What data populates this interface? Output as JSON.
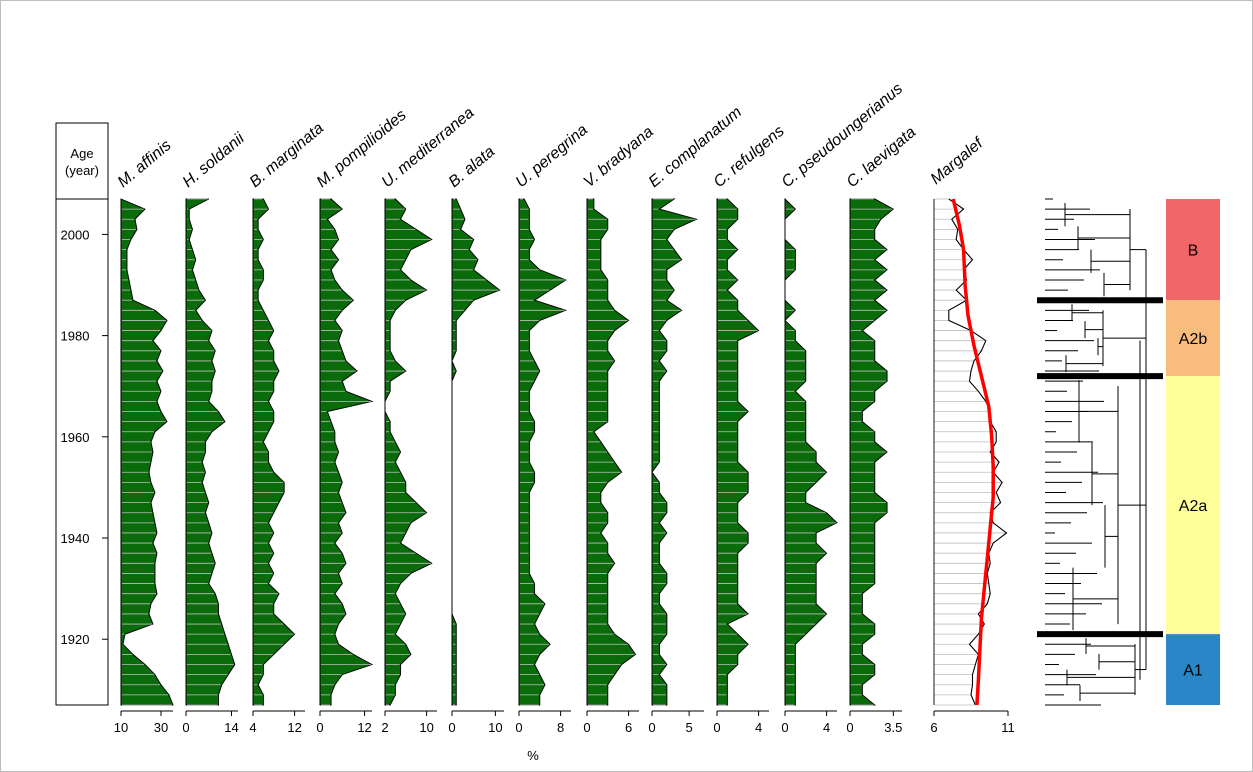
{
  "chart_data": {
    "type": "area",
    "y_axis": {
      "label": "Age\n(year)",
      "label_lines": [
        "Age",
        "(year)"
      ],
      "ticks": [
        2000,
        1980,
        1960,
        1940,
        1920
      ],
      "range": [
        1907,
        2007
      ]
    },
    "x_unit_label": "%",
    "samples_age": [
      2007,
      2005,
      2003,
      2001,
      1999,
      1997,
      1995,
      1993,
      1991,
      1989,
      1987,
      1985,
      1983,
      1981,
      1979,
      1977,
      1975,
      1973,
      1971,
      1969,
      1967,
      1965,
      1963,
      1961,
      1959,
      1957,
      1955,
      1953,
      1951,
      1949,
      1947,
      1945,
      1943,
      1941,
      1939,
      1937,
      1935,
      1933,
      1931,
      1929,
      1927,
      1925,
      1923,
      1921,
      1919,
      1917,
      1915,
      1913,
      1911,
      1909,
      1907
    ],
    "series": [
      {
        "name": "M. affinis",
        "tick_labels": [
          "10",
          "30"
        ],
        "xlim": [
          10,
          36
        ],
        "values": [
          10,
          22,
          17,
          18,
          15,
          13,
          13,
          13,
          14,
          15,
          16,
          27,
          33,
          30,
          26,
          30,
          28,
          31,
          28,
          30,
          28,
          30,
          33,
          27,
          25,
          26,
          25,
          24,
          25,
          27,
          25,
          26,
          27,
          28,
          26,
          28,
          27,
          27,
          27,
          28,
          25,
          24,
          26,
          12,
          11,
          16,
          22,
          27,
          30,
          34,
          36
        ]
      },
      {
        "name": "H. soldanii",
        "tick_labels": [
          "0",
          "14"
        ],
        "xlim": [
          0,
          16
        ],
        "values": [
          7,
          1,
          1,
          2,
          1,
          2,
          3,
          2,
          3,
          4,
          6,
          3,
          5,
          8,
          7,
          9,
          8,
          9,
          8,
          8,
          7,
          10,
          12,
          8,
          6,
          6,
          5,
          6,
          5,
          6,
          7,
          6,
          7,
          8,
          7,
          8,
          9,
          8,
          7,
          9,
          10,
          10,
          11,
          12,
          13,
          14,
          15,
          13,
          11,
          10,
          10
        ]
      },
      {
        "name": "B. marginata",
        "tick_labels": [
          "4",
          "12"
        ],
        "xlim": [
          4,
          14
        ],
        "values": [
          6,
          7,
          5,
          5,
          6,
          5,
          5,
          6,
          6,
          5,
          5,
          6,
          7,
          8,
          7,
          8,
          8,
          9,
          8,
          8,
          7,
          8,
          8,
          7,
          6,
          7,
          7,
          8,
          10,
          10,
          9,
          8,
          7,
          8,
          7,
          8,
          7,
          8,
          7,
          9,
          8,
          8,
          10,
          12,
          10,
          8,
          6,
          6,
          5,
          6,
          6
        ]
      },
      {
        "name": "M. pompilioides",
        "tick_labels": [
          "0",
          "12"
        ],
        "xlim": [
          0,
          14
        ],
        "values": [
          3,
          6,
          2,
          4,
          5,
          3,
          5,
          3,
          4,
          6,
          9,
          6,
          4,
          6,
          5,
          6,
          7,
          10,
          6,
          7,
          14,
          2,
          3,
          4,
          4,
          5,
          4,
          5,
          6,
          5,
          6,
          7,
          5,
          6,
          4,
          6,
          7,
          5,
          6,
          4,
          6,
          7,
          5,
          4,
          5,
          9,
          14,
          6,
          4,
          3,
          3
        ]
      },
      {
        "name": "U. mediterranea",
        "tick_labels": [
          "2",
          "10"
        ],
        "xlim": [
          2,
          12
        ],
        "values": [
          4,
          6,
          5,
          8,
          11,
          7,
          6,
          5,
          7,
          10,
          6,
          4,
          3,
          3,
          3,
          3,
          4,
          6,
          3,
          3,
          2,
          2,
          3,
          3,
          4,
          5,
          4,
          5,
          6,
          6,
          8,
          10,
          7,
          6,
          5,
          8,
          11,
          7,
          5,
          4,
          5,
          6,
          5,
          4,
          6,
          7,
          5,
          5,
          4,
          4,
          3
        ]
      },
      {
        "name": "B. alata",
        "tick_labels": [
          "0",
          "10"
        ],
        "xlim": [
          0,
          12
        ],
        "values": [
          1,
          2,
          3,
          2,
          5,
          4,
          6,
          5,
          8,
          11,
          5,
          3,
          1,
          1,
          1,
          1,
          0,
          1,
          0,
          0,
          0,
          0,
          0,
          0,
          0,
          0,
          0,
          0,
          0,
          0,
          0,
          0,
          0,
          0,
          0,
          0,
          0,
          0,
          0,
          0,
          0,
          0,
          1,
          1,
          1,
          1,
          1,
          1,
          1,
          1,
          1
        ]
      },
      {
        "name": "U. peregrina",
        "tick_labels": [
          "0",
          "8"
        ],
        "xlim": [
          0,
          10
        ],
        "values": [
          1,
          2,
          2,
          2,
          3,
          2,
          2,
          4,
          9,
          6,
          3,
          9,
          4,
          2,
          2,
          2,
          3,
          4,
          3,
          2,
          2,
          2,
          3,
          3,
          2,
          2,
          2,
          3,
          3,
          2,
          2,
          2,
          2,
          2,
          2,
          2,
          2,
          2,
          3,
          3,
          5,
          4,
          3,
          4,
          6,
          4,
          3,
          4,
          5,
          4,
          4
        ]
      },
      {
        "name": "V. bradyana",
        "tick_labels": [
          "0",
          "6"
        ],
        "xlim": [
          0,
          7.5
        ],
        "values": [
          1,
          1,
          3,
          3,
          2,
          2,
          2,
          2,
          3,
          3,
          3,
          4,
          6,
          4,
          3,
          3,
          4,
          3,
          3,
          3,
          3,
          3,
          3,
          1,
          2,
          3,
          4,
          5,
          3,
          2,
          2,
          3,
          3,
          2,
          3,
          3,
          4,
          3,
          3,
          3,
          3,
          3,
          3,
          4,
          6,
          7,
          5,
          4,
          3,
          3,
          3
        ]
      },
      {
        "name": "E. complanatum",
        "tick_labels": [
          "0",
          "5"
        ],
        "xlim": [
          0,
          7
        ],
        "values": [
          3,
          1,
          6,
          3,
          2,
          3,
          4,
          2,
          2,
          3,
          2,
          4,
          2,
          1,
          2,
          2,
          1,
          2,
          1,
          1,
          1,
          1,
          1,
          1,
          1,
          1,
          1,
          0,
          1,
          1,
          2,
          2,
          1,
          2,
          1,
          1,
          1,
          2,
          2,
          1,
          1,
          2,
          2,
          2,
          1,
          1,
          2,
          1,
          2,
          2,
          2
        ]
      },
      {
        "name": "C. refulgens",
        "tick_labels": [
          "0",
          "4"
        ],
        "xlim": [
          0,
          5
        ],
        "values": [
          1,
          2,
          2,
          1,
          1,
          2,
          1,
          1,
          2,
          1,
          2,
          2,
          3,
          4,
          2,
          2,
          2,
          2,
          2,
          2,
          2,
          3,
          2,
          2,
          2,
          2,
          2,
          3,
          3,
          3,
          2,
          2,
          2,
          3,
          3,
          2,
          2,
          2,
          2,
          2,
          2,
          3,
          1,
          2,
          3,
          2,
          2,
          1,
          1,
          1,
          1
        ]
      },
      {
        "name": "C. pseudoungerianus",
        "tick_labels": [
          "0",
          "4"
        ],
        "xlim": [
          0,
          5
        ],
        "values": [
          0,
          1,
          0,
          0,
          0,
          1,
          1,
          1,
          0,
          0,
          0,
          1,
          0,
          1,
          1,
          2,
          2,
          2,
          2,
          1,
          2,
          2,
          2,
          2,
          2,
          3,
          3,
          4,
          3,
          2,
          2,
          4,
          5,
          3,
          3,
          4,
          3,
          3,
          3,
          3,
          3,
          4,
          3,
          2,
          1,
          1,
          1,
          1,
          1,
          1,
          1
        ]
      },
      {
        "name": "C. laevigata",
        "tick_labels": [
          "0",
          "3.5"
        ],
        "xlim": [
          0,
          4.2
        ],
        "values": [
          2,
          3.5,
          2.5,
          2,
          2,
          3,
          2,
          3,
          2,
          3,
          2,
          3,
          2,
          1,
          2,
          2,
          2,
          3,
          3,
          2,
          2,
          1,
          1,
          2,
          2,
          3,
          2,
          2,
          2,
          2,
          3,
          3,
          2,
          2,
          2,
          2,
          2,
          2,
          2,
          1,
          1,
          1,
          2,
          2,
          1,
          1,
          2,
          2,
          1,
          1,
          2
        ]
      }
    ],
    "diversity": {
      "name": "Margalef",
      "tick_labels": [
        "6",
        "11"
      ],
      "xlim": [
        6,
        11
      ],
      "values": [
        7.0,
        8.0,
        7.2,
        7.6,
        7.5,
        8.0,
        8.6,
        8.0,
        8.2,
        7.5,
        8.2,
        7.0,
        7.0,
        8.5,
        9.5,
        9.2,
        8.7,
        8.5,
        8.4,
        9.0,
        9.5,
        9.8,
        9.8,
        10.2,
        10.2,
        9.8,
        10.4,
        10.0,
        10.6,
        10.2,
        10.5,
        9.8,
        10.0,
        10.9,
        10.0,
        9.7,
        9.8,
        9.6,
        9.7,
        9.8,
        9.6,
        9.0,
        9.4,
        9.0,
        8.4,
        9.0,
        8.8,
        8.6,
        8.6,
        8.5,
        8.8
      ],
      "trend_ages": [
        2007,
        2002,
        1997,
        1990,
        1984,
        1978,
        1972,
        1966,
        1960,
        1954,
        1948,
        1942,
        1936,
        1930,
        1924,
        1918,
        1912,
        1907
      ],
      "trend_values": [
        7.3,
        7.7,
        8.0,
        8.1,
        8.3,
        8.7,
        9.2,
        9.7,
        9.9,
        10.0,
        10.0,
        9.8,
        9.6,
        9.4,
        9.2,
        9.1,
        9.0,
        8.9
      ]
    },
    "zones": [
      {
        "label": "B",
        "from": 2007,
        "to": 1987,
        "color": "#f26566"
      },
      {
        "label": "A2b",
        "from": 1987,
        "to": 1972,
        "color": "#f8bd7d"
      },
      {
        "label": "A2a",
        "from": 1972,
        "to": 1921,
        "color": "#ffff9a"
      },
      {
        "label": "A1",
        "from": 1921,
        "to": 1907,
        "color": "#2a86c6"
      }
    ],
    "grid": true,
    "colors": {
      "fill": "#0a6b0a",
      "trend": "#ff0000",
      "grid": "#bdbdbd"
    }
  }
}
